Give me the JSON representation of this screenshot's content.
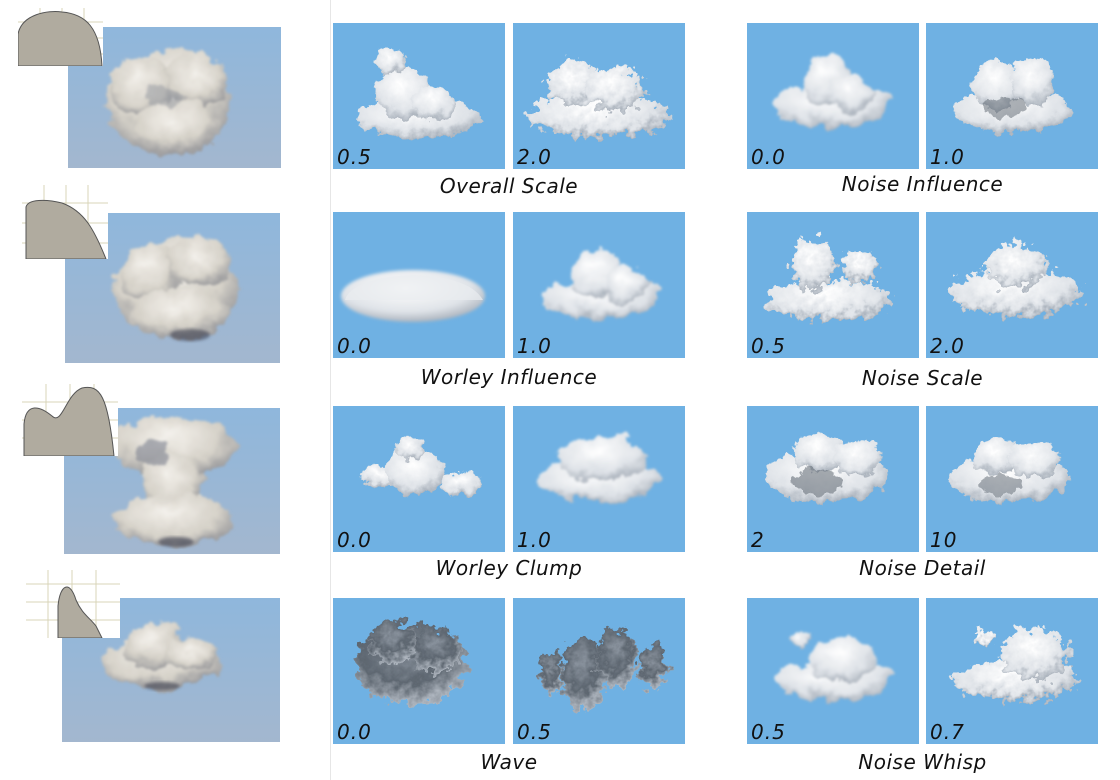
{
  "colors": {
    "tile_blue": "#6fb1e3",
    "sky_top": "#8fb7dc",
    "sky_bottom": "#a3b7cf",
    "profile_fill": "#b0ab9f"
  },
  "rows": [
    {
      "left": {
        "profile": "half-dome",
        "cloud": "round-cumulus"
      },
      "groups": [
        {
          "caption": "Overall Scale",
          "tiles": [
            {
              "label": "0.5"
            },
            {
              "label": "2.0"
            }
          ]
        },
        {
          "caption": "Noise Influence",
          "tiles": [
            {
              "label": "0.0"
            },
            {
              "label": "1.0"
            }
          ]
        }
      ]
    },
    {
      "left": {
        "profile": "quarter-dome",
        "cloud": "puffy-cumulus"
      },
      "groups": [
        {
          "caption": "Worley Influence",
          "tiles": [
            {
              "label": "0.0"
            },
            {
              "label": "1.0"
            }
          ]
        },
        {
          "caption": "Noise Scale",
          "tiles": [
            {
              "label": "0.5"
            },
            {
              "label": "2.0"
            }
          ]
        }
      ]
    },
    {
      "left": {
        "profile": "double-bump",
        "cloud": "tall-stacked"
      },
      "groups": [
        {
          "caption": "Worley Clump",
          "tiles": [
            {
              "label": "0.0"
            },
            {
              "label": "1.0"
            }
          ]
        },
        {
          "caption": "Noise Detail",
          "tiles": [
            {
              "label": "2"
            },
            {
              "label": "10"
            }
          ]
        }
      ]
    },
    {
      "left": {
        "profile": "peak",
        "cloud": "flat-cumulus"
      },
      "groups": [
        {
          "caption": "Wave",
          "tiles": [
            {
              "label": "0.0"
            },
            {
              "label": "0.5"
            }
          ]
        },
        {
          "caption": "Noise Whisp",
          "tiles": [
            {
              "label": "0.5"
            },
            {
              "label": "0.7"
            }
          ]
        }
      ]
    }
  ]
}
